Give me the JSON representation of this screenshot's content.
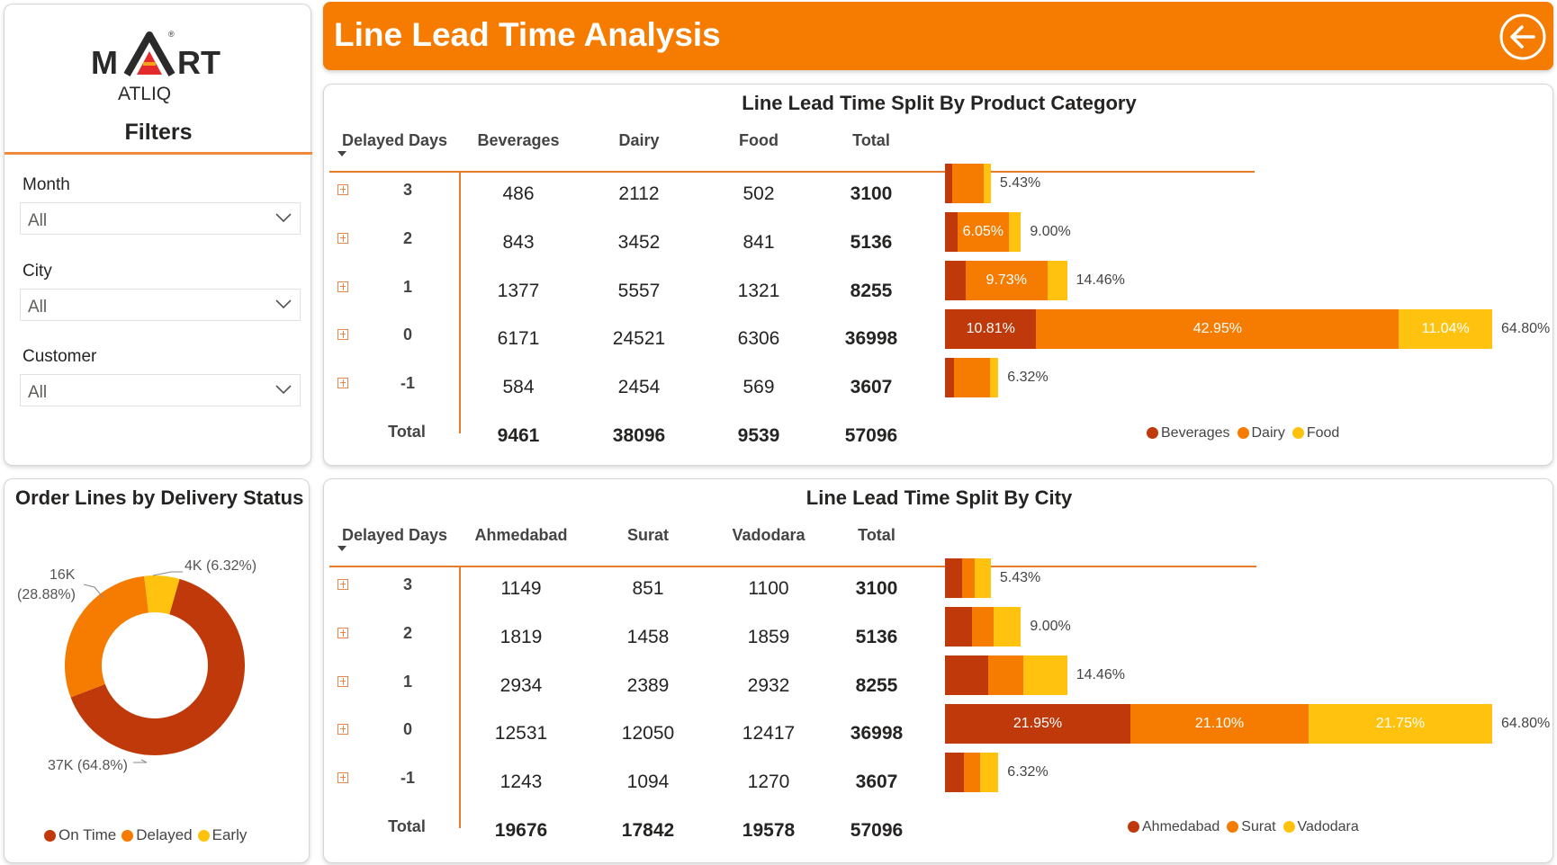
{
  "brand": {
    "logo_left": "M",
    "logo_right": "RT",
    "logo_sub": "ATLIQ",
    "logo_registered": "®"
  },
  "filters": {
    "title": "Filters",
    "items": [
      {
        "label": "Month",
        "value": "All"
      },
      {
        "label": "City",
        "value": "All"
      },
      {
        "label": "Customer",
        "value": "All"
      }
    ]
  },
  "header": {
    "title": "Line Lead Time Analysis",
    "back_icon": "back-arrow-icon"
  },
  "colors": {
    "accent": "#f57c00",
    "series1": "#c0390b",
    "series2": "#f57c00",
    "series3": "#ffc20e"
  },
  "category_table": {
    "title": "Line Lead Time Split By Product Category",
    "columns": [
      "Delayed Days",
      "Beverages",
      "Dairy",
      "Food",
      "Total"
    ],
    "rows": [
      {
        "days": "3",
        "values": [
          "486",
          "2112",
          "502"
        ],
        "total": "3100"
      },
      {
        "days": "2",
        "values": [
          "843",
          "3452",
          "841"
        ],
        "total": "5136"
      },
      {
        "days": "1",
        "values": [
          "1377",
          "5557",
          "1321"
        ],
        "total": "8255"
      },
      {
        "days": "0",
        "values": [
          "6171",
          "24521",
          "6306"
        ],
        "total": "36998"
      },
      {
        "days": "-1",
        "values": [
          "584",
          "2454",
          "569"
        ],
        "total": "3607"
      }
    ],
    "total_row": {
      "label": "Total",
      "values": [
        "9461",
        "38096",
        "9539"
      ],
      "total": "57096"
    }
  },
  "city_table": {
    "title": "Line Lead Time Split By City",
    "columns": [
      "Delayed Days",
      "Ahmedabad",
      "Surat",
      "Vadodara",
      "Total"
    ],
    "rows": [
      {
        "days": "3",
        "values": [
          "1149",
          "851",
          "1100"
        ],
        "total": "3100"
      },
      {
        "days": "2",
        "values": [
          "1819",
          "1458",
          "1859"
        ],
        "total": "5136"
      },
      {
        "days": "1",
        "values": [
          "2934",
          "2389",
          "2932"
        ],
        "total": "8255"
      },
      {
        "days": "0",
        "values": [
          "12531",
          "12050",
          "12417"
        ],
        "total": "36998"
      },
      {
        "days": "-1",
        "values": [
          "1243",
          "1094",
          "1270"
        ],
        "total": "3607"
      }
    ],
    "total_row": {
      "label": "Total",
      "values": [
        "19676",
        "17842",
        "19578"
      ],
      "total": "57096"
    }
  },
  "chart_data": [
    {
      "type": "bar",
      "stacked": true,
      "orientation": "horizontal",
      "categories": [
        "3",
        "2",
        "1",
        "0",
        "-1"
      ],
      "series": [
        {
          "name": "Beverages",
          "values": [
            0.85,
            1.48,
            2.41,
            10.81,
            1.02
          ],
          "labels": [
            "",
            "",
            "",
            "10.81%",
            ""
          ]
        },
        {
          "name": "Dairy",
          "values": [
            3.7,
            6.05,
            9.73,
            42.95,
            4.3
          ],
          "labels": [
            "",
            "6.05%",
            "9.73%",
            "42.95%",
            ""
          ]
        },
        {
          "name": "Food",
          "values": [
            0.88,
            1.47,
            2.31,
            11.04,
            1.0
          ],
          "labels": [
            "",
            "",
            "",
            "11.04%",
            ""
          ]
        }
      ],
      "totals": [
        "5.43%",
        "9.00%",
        "14.46%",
        "64.80%",
        "6.32%"
      ],
      "xlim": [
        0,
        64.8
      ],
      "legend": "bottom"
    },
    {
      "type": "bar",
      "stacked": true,
      "orientation": "horizontal",
      "categories": [
        "3",
        "2",
        "1",
        "0",
        "-1"
      ],
      "series": [
        {
          "name": "Ahmedabad",
          "values": [
            2.01,
            3.19,
            5.14,
            21.95,
            2.18
          ],
          "labels": [
            "",
            "",
            "",
            "21.95%",
            ""
          ]
        },
        {
          "name": "Surat",
          "values": [
            1.49,
            2.55,
            4.18,
            21.1,
            1.92
          ],
          "labels": [
            "",
            "",
            "",
            "21.10%",
            ""
          ]
        },
        {
          "name": "Vadodara",
          "values": [
            1.93,
            3.26,
            5.14,
            21.75,
            2.22
          ],
          "labels": [
            "",
            "",
            "",
            "21.75%",
            ""
          ]
        }
      ],
      "totals": [
        "5.43%",
        "9.00%",
        "14.46%",
        "64.80%",
        "6.32%"
      ],
      "xlim": [
        0,
        64.8
      ],
      "legend": "bottom"
    },
    {
      "type": "pie",
      "donut": true,
      "title": "Order Lines by Delivery Status",
      "categories": [
        "On Time",
        "Delayed",
        "Early"
      ],
      "values": [
        64.8,
        28.88,
        6.32
      ],
      "labels": [
        "37K (64.8%)",
        "16K (28.88%)",
        "4K (6.32%)"
      ],
      "legend": "bottom"
    }
  ]
}
